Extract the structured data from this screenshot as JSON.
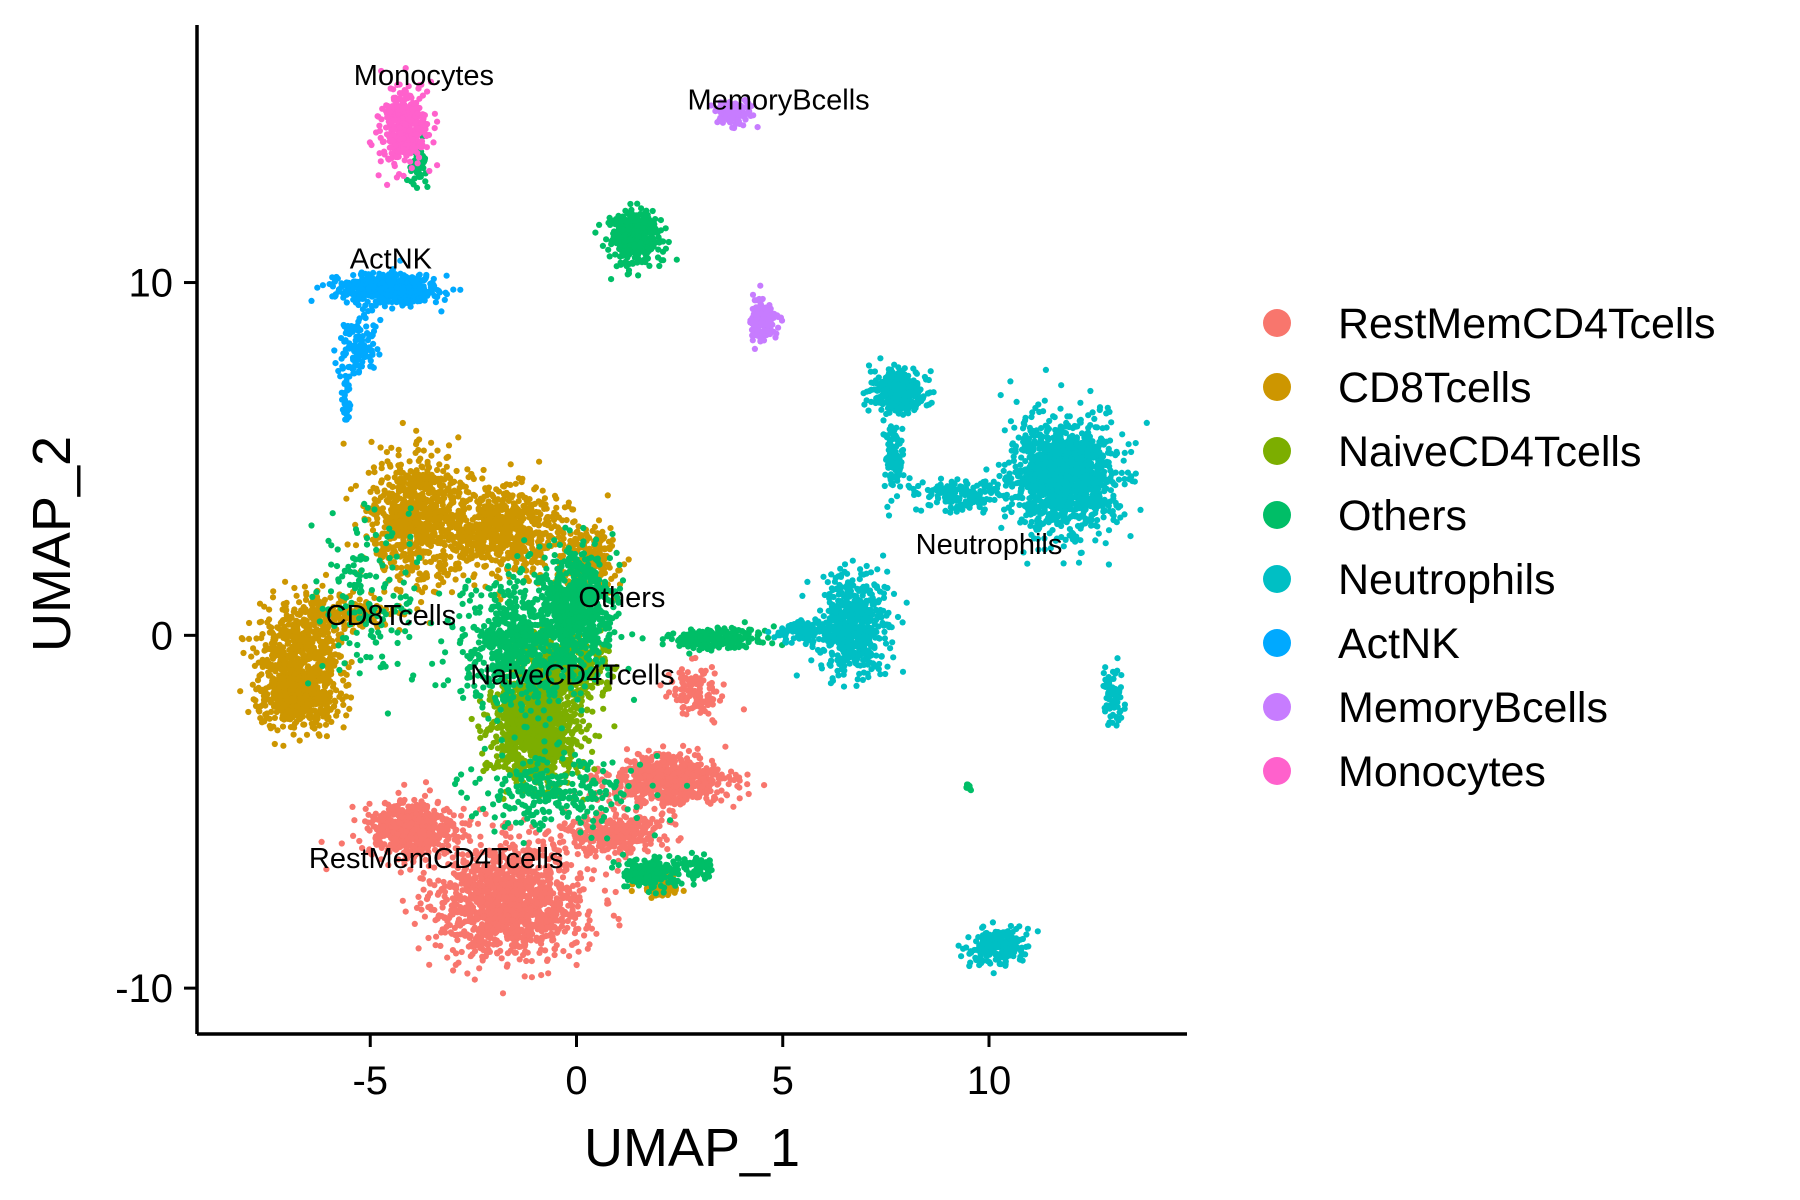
{
  "chart_data": {
    "type": "scatter",
    "xlabel": "UMAP_1",
    "ylabel": "UMAP_2",
    "xlim": [
      -9.2,
      14.8
    ],
    "ylim": [
      -11.3,
      17.3
    ],
    "x_ticks": [
      -5,
      0,
      5,
      10
    ],
    "x_tick_labels": [
      "-5",
      "0",
      "5",
      "10"
    ],
    "y_ticks": [
      -10,
      0,
      10
    ],
    "y_tick_labels": [
      "-10",
      "0",
      "10"
    ],
    "grid": false,
    "legend_position": "right",
    "series": [
      {
        "name": "RestMemCD4Tcells",
        "color": "#F8766D",
        "label_at": [
          -3.4,
          -6.6
        ],
        "regions": [
          {
            "cx": -1.6,
            "cy": -7.5,
            "sx": 1.45,
            "sy": 1.3,
            "n": 1300
          },
          {
            "cx": -4.0,
            "cy": -5.5,
            "sx": 0.85,
            "sy": 0.65,
            "n": 550
          },
          {
            "cx": 2.2,
            "cy": -4.1,
            "sx": 1.2,
            "sy": 0.55,
            "n": 650
          },
          {
            "cx": 0.9,
            "cy": -5.6,
            "sx": 1.0,
            "sy": 0.5,
            "n": 300
          },
          {
            "cx": 2.9,
            "cy": -1.6,
            "sx": 0.5,
            "sy": 0.6,
            "n": 120
          }
        ]
      },
      {
        "name": "CD8Tcells",
        "color": "#CD9600",
        "label_at": [
          -4.5,
          0.3
        ],
        "regions": [
          {
            "cx": -6.7,
            "cy": -0.8,
            "sx": 0.8,
            "sy": 1.35,
            "n": 750
          },
          {
            "cx": -6.7,
            "cy": -1.8,
            "sx": 0.75,
            "sy": 0.5,
            "n": 250
          },
          {
            "cx": -5.6,
            "cy": 0.6,
            "sx": 0.9,
            "sy": 0.35,
            "n": 200
          },
          {
            "cx": -3.8,
            "cy": 3.3,
            "sx": 1.0,
            "sy": 1.4,
            "n": 800
          },
          {
            "cx": -1.7,
            "cy": 3.0,
            "sx": 1.0,
            "sy": 1.0,
            "n": 600
          },
          {
            "cx": 0.2,
            "cy": 2.0,
            "sx": 0.6,
            "sy": 0.9,
            "n": 250
          },
          {
            "cx": 2.0,
            "cy": -7.1,
            "sx": 0.4,
            "sy": 0.3,
            "n": 100
          }
        ]
      },
      {
        "name": "NaiveCD4Tcells",
        "color": "#7CAE00",
        "label_at": [
          -0.1,
          -1.4
        ],
        "regions": [
          {
            "cx": -1.0,
            "cy": -2.6,
            "sx": 0.85,
            "sy": 1.2,
            "n": 1100
          },
          {
            "cx": -0.3,
            "cy": -1.0,
            "sx": 0.9,
            "sy": 0.8,
            "n": 350
          }
        ]
      },
      {
        "name": "Others",
        "color": "#00BE67",
        "label_at": [
          1.1,
          0.8
        ],
        "regions": [
          {
            "cx": 1.4,
            "cy": 11.3,
            "sx": 0.5,
            "sy": 0.6,
            "n": 380
          },
          {
            "cx": 0.0,
            "cy": 0.8,
            "sx": 0.7,
            "sy": 1.3,
            "n": 650
          },
          {
            "cx": -1.4,
            "cy": -0.3,
            "sx": 1.2,
            "sy": 1.6,
            "n": 700
          },
          {
            "cx": 3.3,
            "cy": -0.1,
            "sx": 0.9,
            "sy": 0.25,
            "n": 220
          },
          {
            "cx": 1.8,
            "cy": -6.7,
            "sx": 0.7,
            "sy": 0.35,
            "n": 200
          },
          {
            "cx": 3.0,
            "cy": -6.6,
            "sx": 0.25,
            "sy": 0.3,
            "n": 60
          },
          {
            "cx": -0.6,
            "cy": -4.5,
            "sx": 1.6,
            "sy": 0.8,
            "n": 250
          },
          {
            "cx": -3.8,
            "cy": 13.3,
            "sx": 0.2,
            "sy": 0.5,
            "n": 40
          },
          {
            "cx": 9.5,
            "cy": -4.3,
            "sx": 0.05,
            "sy": 0.1,
            "n": 12
          },
          {
            "cx": -5.0,
            "cy": 1.0,
            "sx": 1.0,
            "sy": 2.0,
            "n": 160
          }
        ]
      },
      {
        "name": "Neutrophils",
        "color": "#00BFC4",
        "label_at": [
          10.0,
          2.3
        ],
        "regions": [
          {
            "cx": 11.8,
            "cy": 4.5,
            "sx": 1.0,
            "sy": 1.25,
            "n": 1400
          },
          {
            "cx": 7.8,
            "cy": 6.9,
            "sx": 0.55,
            "sy": 0.45,
            "n": 350
          },
          {
            "cx": 7.7,
            "cy": 5.1,
            "sx": 0.2,
            "sy": 0.9,
            "n": 100
          },
          {
            "cx": 9.2,
            "cy": 4.0,
            "sx": 0.9,
            "sy": 0.35,
            "n": 160
          },
          {
            "cx": 6.7,
            "cy": 0.3,
            "sx": 0.65,
            "sy": 1.1,
            "n": 550
          },
          {
            "cx": 5.4,
            "cy": 0.1,
            "sx": 0.45,
            "sy": 0.25,
            "n": 100
          },
          {
            "cx": 10.2,
            "cy": -8.8,
            "sx": 0.5,
            "sy": 0.4,
            "n": 230
          },
          {
            "cx": 13.0,
            "cy": -1.7,
            "sx": 0.25,
            "sy": 0.6,
            "n": 80
          }
        ]
      },
      {
        "name": "ActNK",
        "color": "#00A9FF",
        "label_at": [
          -4.5,
          10.4
        ],
        "regions": [
          {
            "cx": -4.6,
            "cy": 9.8,
            "sx": 1.0,
            "sy": 0.35,
            "n": 500
          },
          {
            "cx": -5.3,
            "cy": 8.2,
            "sx": 0.35,
            "sy": 0.7,
            "n": 120
          },
          {
            "cx": -5.6,
            "cy": 6.7,
            "sx": 0.1,
            "sy": 0.6,
            "n": 30
          }
        ]
      },
      {
        "name": "MemoryBcells",
        "color": "#C77CFF",
        "label_at": [
          4.9,
          14.9
        ],
        "regions": [
          {
            "cx": 3.8,
            "cy": 14.8,
            "sx": 0.35,
            "sy": 0.3,
            "n": 140
          },
          {
            "cx": 4.5,
            "cy": 8.9,
            "sx": 0.25,
            "sy": 0.45,
            "n": 170
          }
        ]
      },
      {
        "name": "Monocytes",
        "color": "#FF61CC",
        "label_at": [
          -3.7,
          15.6
        ],
        "regions": [
          {
            "cx": -4.2,
            "cy": 14.4,
            "sx": 0.45,
            "sy": 0.85,
            "n": 420
          }
        ]
      }
    ]
  }
}
